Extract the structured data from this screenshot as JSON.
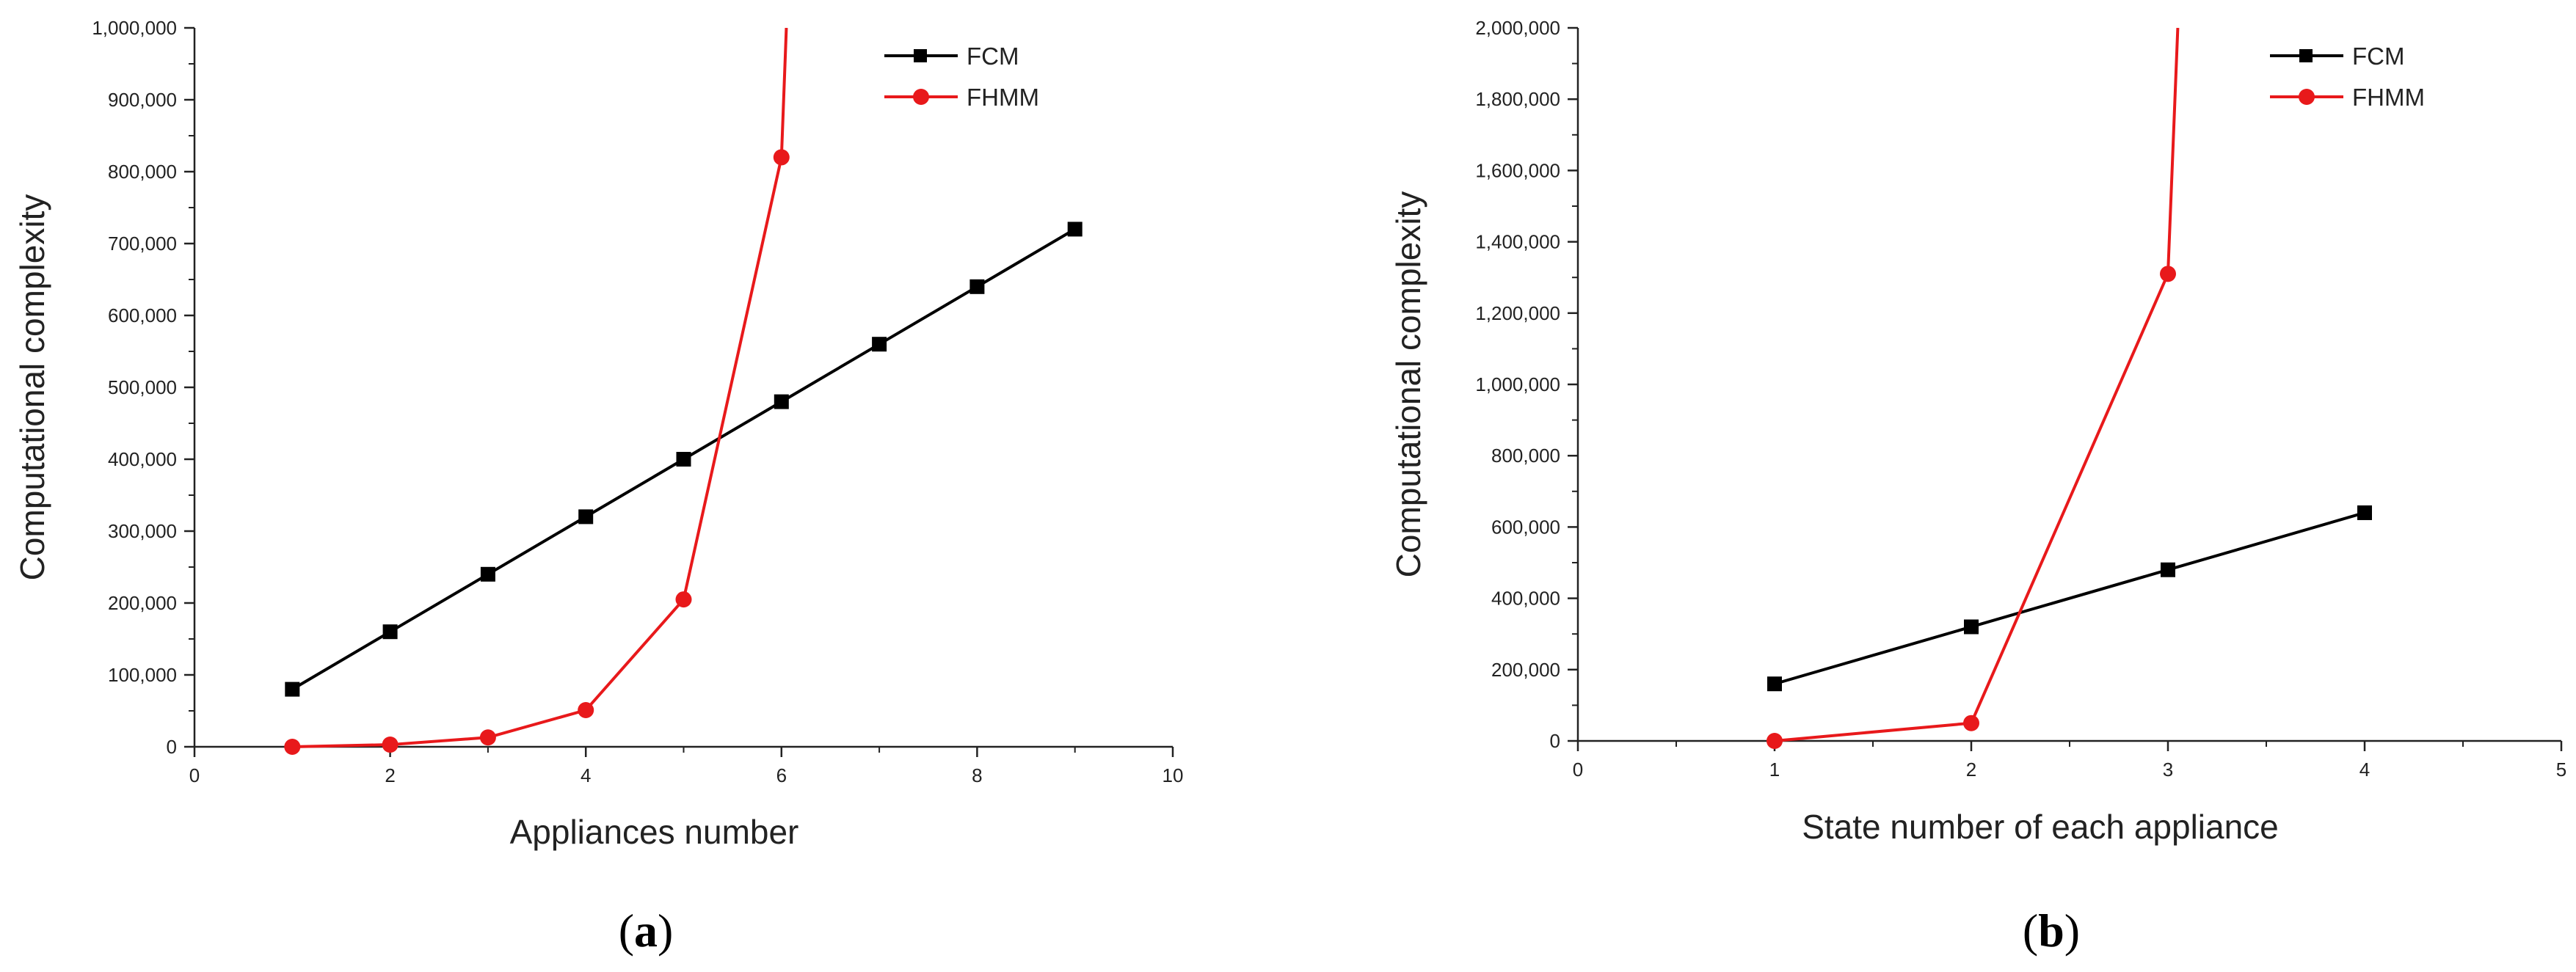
{
  "chart_data": [
    {
      "type": "line",
      "panel_label": "a",
      "xlabel": "Appliances number",
      "ylabel": "Computational complexity",
      "xlim": [
        0,
        10
      ],
      "ylim": [
        0,
        1000000
      ],
      "x_ticks": [
        "0",
        "2",
        "4",
        "6",
        "8",
        "10"
      ],
      "y_ticks": [
        "0",
        "100,000",
        "200,000",
        "300,000",
        "400,000",
        "500,000",
        "600,000",
        "700,000",
        "800,000",
        "900,000",
        "1,000,000"
      ],
      "legend_position": "top-right",
      "series": [
        {
          "name": "FCM",
          "color": "#000000",
          "marker": "square",
          "x": [
            1,
            2,
            3,
            4,
            5,
            6,
            7,
            8,
            9
          ],
          "y": [
            80000,
            160000,
            240000,
            320000,
            400000,
            480000,
            560000,
            640000,
            720000
          ]
        },
        {
          "name": "FHMM",
          "color": "#e8191b",
          "marker": "circle",
          "x": [
            1,
            2,
            3,
            4,
            5,
            6
          ],
          "y": [
            0,
            3000,
            13000,
            51000,
            205000,
            820000
          ],
          "continues_to": [
            6.05,
            1000000
          ]
        }
      ]
    },
    {
      "type": "line",
      "panel_label": "b",
      "xlabel": "State number of each appliance",
      "ylabel": "Computational complexity",
      "xlim": [
        0,
        5
      ],
      "ylim": [
        0,
        2000000
      ],
      "x_ticks": [
        "0",
        "1",
        "2",
        "3",
        "4",
        "5"
      ],
      "y_ticks": [
        "0",
        "200,000",
        "400,000",
        "600,000",
        "800,000",
        "1,000,000",
        "1,200,000",
        "1,400,000",
        "1,600,000",
        "1,800,000",
        "2,000,000"
      ],
      "legend_position": "top-right",
      "series": [
        {
          "name": "FCM",
          "color": "#000000",
          "marker": "square",
          "x": [
            1,
            2,
            3,
            4
          ],
          "y": [
            160000,
            320000,
            480000,
            640000
          ]
        },
        {
          "name": "FHMM",
          "color": "#e8191b",
          "marker": "circle",
          "x": [
            1,
            2,
            3
          ],
          "y": [
            0,
            50000,
            1310000
          ],
          "continues_to": [
            3.05,
            2000000
          ]
        }
      ]
    }
  ]
}
